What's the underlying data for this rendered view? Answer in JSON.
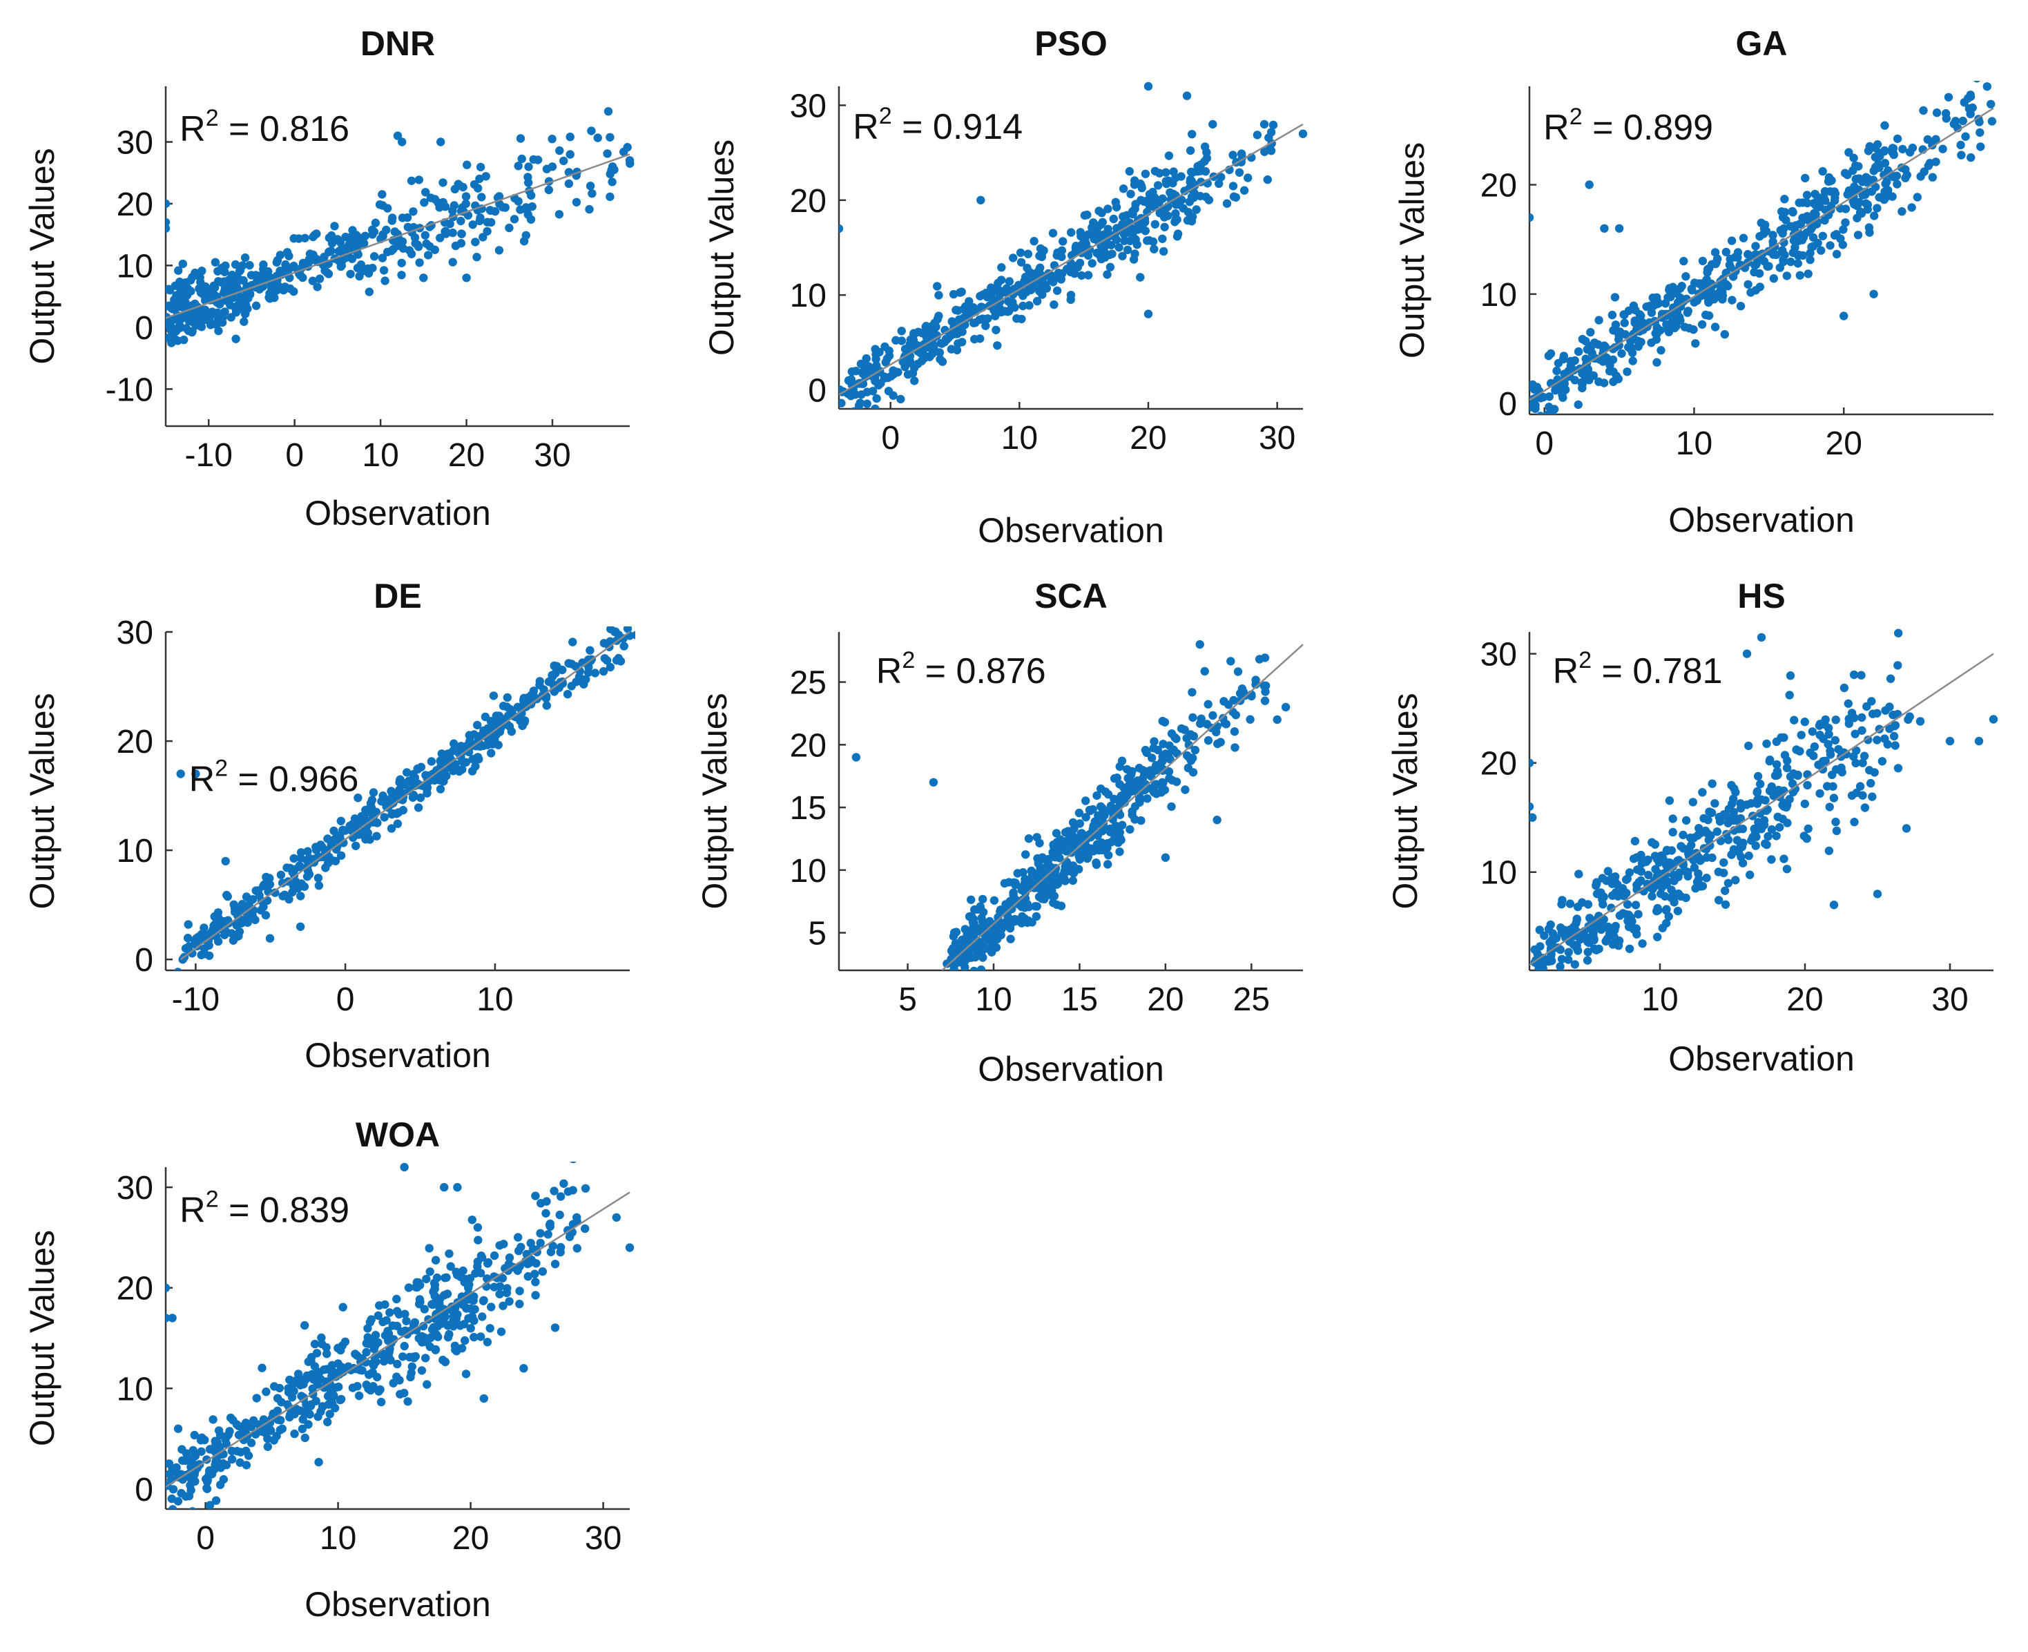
{
  "figure": {
    "point_color": "#0f72bd",
    "fit_line_color": "#8a8a8a"
  },
  "chart_data": [
    {
      "id": "dnr",
      "type": "scatter",
      "title": "DNR",
      "r2_label": "R",
      "r2_sup": "2",
      "r2_value": " = 0.816",
      "xlabel": "Observation",
      "ylabel": "Output Values",
      "xlim": [
        -15,
        39
      ],
      "ylim": [
        -16,
        39
      ],
      "xticks": [
        -10,
        0,
        10,
        20,
        30
      ],
      "yticks": [
        -10,
        0,
        10,
        20,
        30
      ],
      "fit": {
        "x1": -15,
        "y1": 1.5,
        "x2": 39,
        "y2": 28
      },
      "scatter": {
        "seed": 11,
        "n": 520,
        "noise": 2.9,
        "clusters": [
          [
            -15,
            -5,
            0.4,
            0.14
          ],
          [
            -5,
            8,
            0.25,
            0.13
          ],
          [
            8,
            28,
            0.28,
            0.35
          ],
          [
            28,
            39,
            0.06,
            0.4
          ]
        ],
        "xjitter": 1.4
      },
      "outliers": [
        [
          -15,
          20
        ],
        [
          -15,
          17
        ],
        [
          -15,
          16
        ],
        [
          12,
          31
        ],
        [
          12.5,
          30
        ],
        [
          17,
          30
        ],
        [
          15,
          8
        ],
        [
          20,
          8
        ],
        [
          30,
          26
        ],
        [
          37,
          26
        ],
        [
          39,
          27
        ]
      ]
    },
    {
      "id": "pso",
      "type": "scatter",
      "title": "PSO",
      "r2_label": "R",
      "r2_sup": "2",
      "r2_value": " = 0.914",
      "xlabel": "Observation",
      "ylabel": "Output Values",
      "xlim": [
        -4,
        32
      ],
      "ylim": [
        -2,
        32
      ],
      "xticks": [
        0,
        10,
        20,
        30
      ],
      "yticks": [
        0,
        10,
        20,
        30
      ],
      "fit": {
        "x1": -4,
        "y1": -0.5,
        "x2": 32,
        "y2": 28
      },
      "scatter": {
        "seed": 23,
        "n": 560,
        "noise": 1.8,
        "clusters": [
          [
            -4,
            3,
            0.22,
            0.13
          ],
          [
            3,
            12,
            0.3,
            0.15
          ],
          [
            12,
            16,
            0.1,
            0.13
          ],
          [
            16,
            24,
            0.32,
            0.26
          ],
          [
            24,
            30,
            0.06,
            0.32
          ]
        ],
        "xjitter": 1.0
      },
      "outliers": [
        [
          -4,
          17
        ],
        [
          7,
          20
        ],
        [
          20,
          32
        ],
        [
          23,
          31
        ],
        [
          25,
          28
        ],
        [
          29,
          28
        ],
        [
          32,
          27
        ],
        [
          20,
          8
        ],
        [
          14,
          10
        ]
      ]
    },
    {
      "id": "ga",
      "type": "scatter",
      "title": "GA",
      "r2_label": "R",
      "r2_sup": "2",
      "r2_value": " = 0.899",
      "xlabel": "Observation",
      "ylabel": "Output Values",
      "xlim": [
        -1,
        30
      ],
      "ylim": [
        -1,
        29
      ],
      "xticks": [
        0,
        10,
        20
      ],
      "yticks": [
        0,
        10,
        20
      ],
      "fit": {
        "x1": -1,
        "y1": 0.3,
        "x2": 30,
        "y2": 27
      },
      "scatter": {
        "seed": 37,
        "n": 540,
        "noise": 1.8,
        "clusters": [
          [
            -1,
            4,
            0.16,
            0.12
          ],
          [
            4,
            13,
            0.34,
            0.16
          ],
          [
            13,
            16,
            0.08,
            0.13
          ],
          [
            16,
            24,
            0.34,
            0.24
          ],
          [
            24,
            30,
            0.08,
            0.3
          ]
        ],
        "xjitter": 1.0
      },
      "outliers": [
        [
          -1,
          17
        ],
        [
          3,
          20
        ],
        [
          4,
          16
        ],
        [
          5,
          16
        ],
        [
          27,
          28
        ],
        [
          29,
          26
        ],
        [
          22,
          10
        ],
        [
          20,
          8
        ]
      ]
    },
    {
      "id": "de",
      "type": "scatter",
      "title": "DE",
      "r2_label": "R",
      "r2_sup": "2",
      "r2_value": " = 0.966",
      "xlabel": "Observation",
      "ylabel": "Output Values",
      "xlim": [
        -12,
        19
      ],
      "ylim": [
        -1,
        30
      ],
      "xticks": [
        -10,
        0,
        10
      ],
      "yticks": [
        0,
        10,
        20,
        30
      ],
      "fit": {
        "x1": -11,
        "y1": 0,
        "x2": 19,
        "y2": 30
      },
      "scatter": {
        "seed": 51,
        "n": 480,
        "noise": 1.2,
        "clusters": [
          [
            -11,
            -3,
            0.24,
            0.1
          ],
          [
            -3,
            4,
            0.28,
            0.1
          ],
          [
            4,
            12,
            0.32,
            0.12
          ],
          [
            12,
            19,
            0.16,
            0.14
          ]
        ],
        "xjitter": 0.7
      },
      "outliers": [
        [
          -11,
          17
        ],
        [
          -10,
          17
        ],
        [
          -8,
          9
        ],
        [
          -3,
          3
        ],
        [
          18,
          30
        ]
      ]
    },
    {
      "id": "sca",
      "type": "scatter",
      "title": "SCA",
      "r2_label": "R",
      "r2_sup": "2",
      "r2_value": " = 0.876",
      "xlabel": "Observation",
      "ylabel": "Output Values",
      "xlim": [
        1,
        28
      ],
      "ylim": [
        2,
        29
      ],
      "xticks": [
        5,
        10,
        15,
        20,
        25
      ],
      "yticks": [
        5,
        10,
        15,
        20,
        25
      ],
      "fit": {
        "x1": 7,
        "y1": 2,
        "x2": 28,
        "y2": 28
      },
      "scatter": {
        "seed": 67,
        "n": 560,
        "noise": 1.6,
        "clusters": [
          [
            7.5,
            12,
            0.34,
            0.11
          ],
          [
            12,
            15,
            0.22,
            0.13
          ],
          [
            15,
            20,
            0.32,
            0.2
          ],
          [
            20,
            26,
            0.12,
            0.3
          ]
        ],
        "xjitter": 0.8
      },
      "outliers": [
        [
          2,
          19
        ],
        [
          6.5,
          17
        ],
        [
          22,
          28
        ],
        [
          26.5,
          22
        ],
        [
          27,
          23
        ],
        [
          25,
          24
        ],
        [
          20,
          11
        ],
        [
          23,
          14
        ]
      ]
    },
    {
      "id": "hs",
      "type": "scatter",
      "title": "HS",
      "r2_label": "R",
      "r2_sup": "2",
      "r2_value": " = 0.781",
      "xlabel": "Observation",
      "ylabel": "Output Values",
      "xlim": [
        1,
        33
      ],
      "ylim": [
        1,
        32
      ],
      "xticks": [
        10,
        20,
        30
      ],
      "yticks": [
        10,
        20,
        30
      ],
      "fit": {
        "x1": 1,
        "y1": 1.5,
        "x2": 33,
        "y2": 30
      },
      "scatter": {
        "seed": 83,
        "n": 520,
        "noise": 2.6,
        "clusters": [
          [
            1,
            8,
            0.3,
            0.12
          ],
          [
            8,
            14,
            0.28,
            0.14
          ],
          [
            14,
            22,
            0.3,
            0.28
          ],
          [
            22,
            27,
            0.12,
            0.34
          ]
        ],
        "xjitter": 1.2
      },
      "outliers": [
        [
          1,
          20
        ],
        [
          1,
          16
        ],
        [
          1.2,
          15
        ],
        [
          16,
          30
        ],
        [
          17,
          31.5
        ],
        [
          19,
          28
        ],
        [
          30,
          22
        ],
        [
          32,
          22
        ],
        [
          33,
          24
        ],
        [
          27,
          14
        ],
        [
          25,
          8
        ],
        [
          22,
          7
        ]
      ]
    },
    {
      "id": "woa",
      "type": "scatter",
      "title": "WOA",
      "r2_label": "R",
      "r2_sup": "2",
      "r2_value": " = 0.839",
      "xlabel": "Observation",
      "ylabel": "Output Values",
      "xlim": [
        -3,
        32
      ],
      "ylim": [
        -2,
        32
      ],
      "xticks": [
        0,
        10,
        20,
        30
      ],
      "yticks": [
        0,
        10,
        20,
        30
      ],
      "fit": {
        "x1": -3,
        "y1": 0.2,
        "x2": 32,
        "y2": 29.5
      },
      "scatter": {
        "seed": 97,
        "n": 560,
        "noise": 2.4,
        "clusters": [
          [
            -3,
            6,
            0.26,
            0.12
          ],
          [
            6,
            13,
            0.26,
            0.14
          ],
          [
            13,
            21,
            0.34,
            0.26
          ],
          [
            21,
            28,
            0.14,
            0.32
          ]
        ],
        "xjitter": 1.1
      },
      "outliers": [
        [
          -3,
          20
        ],
        [
          -3,
          17
        ],
        [
          -2.5,
          17
        ],
        [
          15,
          32
        ],
        [
          18,
          30
        ],
        [
          19,
          30
        ],
        [
          28,
          27
        ],
        [
          31,
          27
        ],
        [
          32,
          24
        ],
        [
          24,
          12
        ],
        [
          21,
          9
        ]
      ]
    }
  ]
}
